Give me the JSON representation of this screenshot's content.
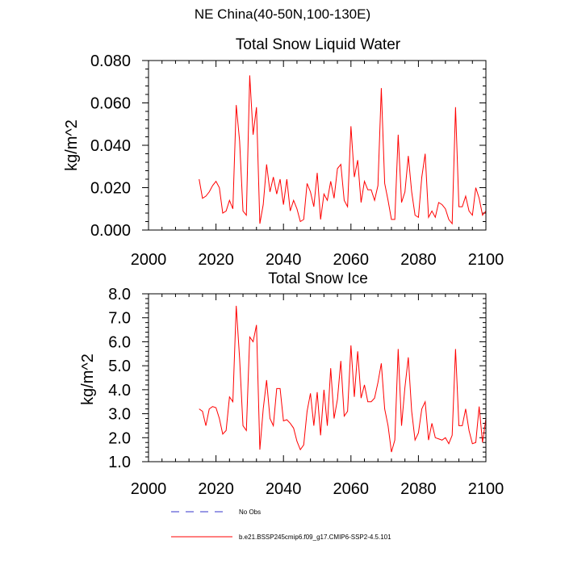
{
  "page": {
    "title": "NE China(40-50N,100-130E)"
  },
  "colors": {
    "series": "#ff0000",
    "no_obs": "#3333cc",
    "axis": "#000000"
  },
  "legend": {
    "no_obs_label": "No Obs",
    "model_label": "b.e21.BSSP245cmip6.f09_g17.CMIP6-SSP2-4.5.101"
  },
  "chart_data": [
    {
      "type": "line",
      "title": "Total Snow Liquid Water",
      "xlabel": "",
      "ylabel": "kg/m^2",
      "xlim": [
        2000,
        2100
      ],
      "ylim": [
        0.0,
        0.08
      ],
      "xticks": [
        2000,
        2020,
        2040,
        2060,
        2080,
        2100
      ],
      "xtick_labels": [
        "2000",
        "2020",
        "2040",
        "2060",
        "2080",
        "2100"
      ],
      "yticks": [
        0.0,
        0.02,
        0.04,
        0.06,
        0.08
      ],
      "ytick_labels": [
        "0.000",
        "0.020",
        "0.040",
        "0.060",
        "0.080"
      ],
      "grid": false,
      "series": [
        {
          "name": "b.e21.BSSP245cmip6.f09_g17.CMIP6-SSP2-4.5.101",
          "x_start": 2015,
          "x_step": 1,
          "values": [
            0.024,
            0.015,
            0.016,
            0.018,
            0.021,
            0.023,
            0.02,
            0.008,
            0.009,
            0.014,
            0.01,
            0.059,
            0.042,
            0.009,
            0.007,
            0.073,
            0.045,
            0.058,
            0.003,
            0.012,
            0.031,
            0.018,
            0.025,
            0.017,
            0.024,
            0.012,
            0.024,
            0.009,
            0.014,
            0.01,
            0.004,
            0.005,
            0.022,
            0.018,
            0.011,
            0.027,
            0.005,
            0.017,
            0.014,
            0.023,
            0.015,
            0.029,
            0.031,
            0.014,
            0.011,
            0.049,
            0.025,
            0.033,
            0.013,
            0.023,
            0.019,
            0.019,
            0.014,
            0.021,
            0.067,
            0.022,
            0.014,
            0.005,
            0.005,
            0.045,
            0.013,
            0.018,
            0.035,
            0.018,
            0.007,
            0.006,
            0.025,
            0.036,
            0.006,
            0.009,
            0.006,
            0.013,
            0.012,
            0.01,
            0.005,
            0.003,
            0.058,
            0.011,
            0.011,
            0.016,
            0.009,
            0.007,
            0.02,
            0.015,
            0.007,
            0.009
          ]
        }
      ]
    },
    {
      "type": "line",
      "title": "Total Snow Ice",
      "xlabel": "",
      "ylabel": "kg/m^2",
      "xlim": [
        2000,
        2100
      ],
      "ylim": [
        1.0,
        8.0
      ],
      "xticks": [
        2000,
        2020,
        2040,
        2060,
        2080,
        2100
      ],
      "xtick_labels": [
        "2000",
        "2020",
        "2040",
        "2060",
        "2080",
        "2100"
      ],
      "yticks": [
        1.0,
        2.0,
        3.0,
        4.0,
        5.0,
        6.0,
        7.0,
        8.0
      ],
      "ytick_labels": [
        "1.0",
        "2.0",
        "3.0",
        "4.0",
        "5.0",
        "6.0",
        "7.0",
        "8.0"
      ],
      "grid": false,
      "series": [
        {
          "name": "b.e21.BSSP245cmip6.f09_g17.CMIP6-SSP2-4.5.101",
          "x_start": 2015,
          "x_step": 1,
          "values": [
            3.2,
            3.1,
            2.5,
            3.2,
            3.3,
            3.25,
            2.8,
            2.15,
            2.3,
            3.7,
            3.5,
            7.5,
            5.3,
            2.5,
            2.3,
            6.2,
            6.0,
            6.7,
            1.5,
            3.2,
            4.4,
            2.8,
            2.5,
            4.05,
            4.05,
            2.7,
            2.75,
            2.6,
            2.4,
            1.85,
            1.5,
            1.7,
            3.1,
            3.85,
            2.5,
            3.9,
            2.1,
            4.0,
            2.5,
            4.9,
            2.8,
            3.6,
            5.2,
            2.9,
            3.1,
            5.85,
            3.7,
            5.6,
            3.65,
            4.2,
            3.5,
            3.5,
            3.65,
            4.3,
            5.1,
            3.2,
            2.5,
            1.4,
            1.9,
            5.7,
            2.5,
            4.1,
            5.35,
            3.1,
            1.9,
            2.2,
            3.2,
            3.5,
            1.9,
            2.6,
            2.0,
            1.95,
            1.9,
            2.0,
            1.75,
            2.1,
            5.7,
            2.5,
            2.5,
            3.2,
            2.3,
            1.75,
            1.8,
            3.3,
            1.8,
            2.8
          ]
        }
      ]
    }
  ]
}
